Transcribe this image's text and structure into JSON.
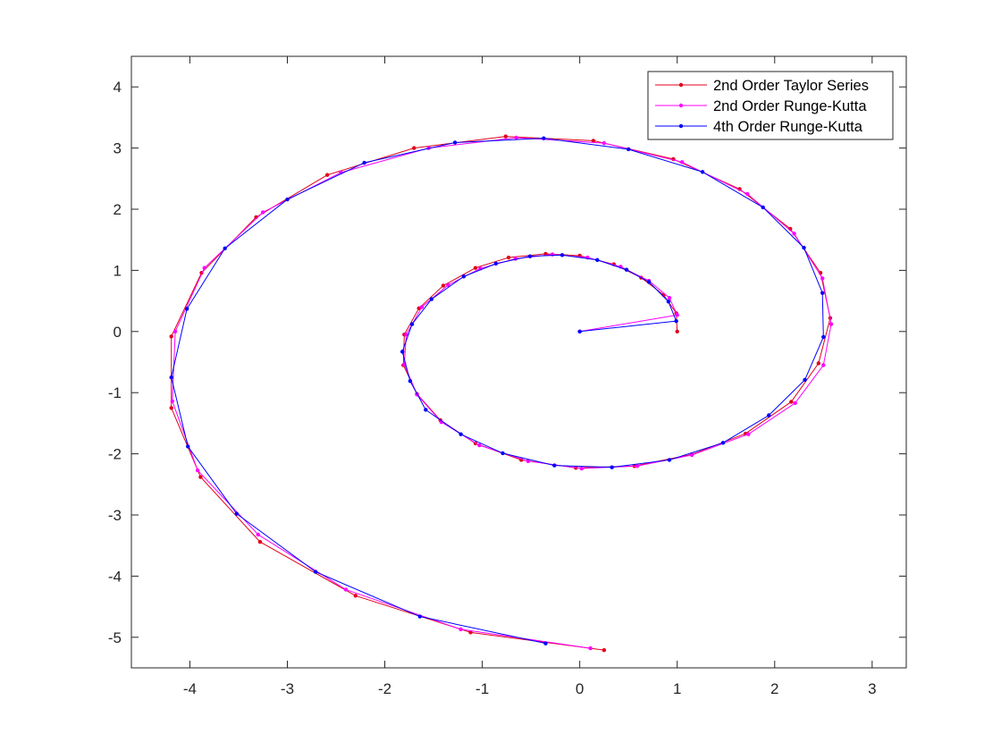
{
  "chart_data": {
    "type": "line",
    "title": "",
    "xlabel": "",
    "ylabel": "",
    "xlim": [
      -4.6,
      3.35
    ],
    "ylim": [
      -5.5,
      4.5
    ],
    "x_ticks": [
      -4,
      -3,
      -2,
      -1,
      0,
      1,
      2,
      3
    ],
    "y_ticks": [
      4,
      3,
      2,
      1,
      0,
      -1,
      -2,
      -3,
      -4,
      -5
    ],
    "x_tick_labels": [
      "-4",
      "-3",
      "-2",
      "-1",
      "0",
      "1",
      "2",
      "3"
    ],
    "y_tick_labels": [
      "4",
      "3",
      "2",
      "1",
      "0",
      "-1",
      "-2",
      "-3",
      "-4",
      "-5"
    ],
    "grid": false,
    "box": true,
    "legend_position": "top-right",
    "legend_entries": [
      "2nd Order Taylor Series",
      "2nd Order Runge-Kutta",
      "4th Order Runge-Kutta"
    ],
    "series": [
      {
        "name": "2nd Order Taylor Series",
        "color": "#e0001b",
        "marker": "dot",
        "points": [
          [
            1.0,
            0.0
          ],
          [
            0.99,
            0.3
          ],
          [
            0.86,
            0.6
          ],
          [
            0.63,
            0.88
          ],
          [
            0.35,
            1.1
          ],
          [
            0.0,
            1.24
          ],
          [
            -0.35,
            1.27
          ],
          [
            -0.73,
            1.21
          ],
          [
            -1.07,
            1.04
          ],
          [
            -1.4,
            0.75
          ],
          [
            -1.65,
            0.38
          ],
          [
            -1.8,
            -0.05
          ],
          [
            -1.81,
            -0.55
          ],
          [
            -1.67,
            -1.02
          ],
          [
            -1.43,
            -1.45
          ],
          [
            -1.07,
            -1.83
          ],
          [
            -0.6,
            -2.1
          ],
          [
            -0.04,
            -2.23
          ],
          [
            0.56,
            -2.2
          ],
          [
            1.15,
            -2.01
          ],
          [
            1.7,
            -1.67
          ],
          [
            2.17,
            -1.15
          ],
          [
            2.45,
            -0.52
          ],
          [
            2.57,
            0.22
          ],
          [
            2.47,
            0.96
          ],
          [
            2.16,
            1.68
          ],
          [
            1.64,
            2.33
          ],
          [
            0.96,
            2.82
          ],
          [
            0.14,
            3.12
          ],
          [
            -0.76,
            3.19
          ],
          [
            -1.7,
            3.0
          ],
          [
            -2.59,
            2.56
          ],
          [
            -3.32,
            1.87
          ],
          [
            -3.88,
            0.96
          ],
          [
            -4.19,
            -0.08
          ],
          [
            -4.19,
            -1.25
          ],
          [
            -3.89,
            -2.38
          ],
          [
            -3.28,
            -3.44
          ],
          [
            -2.3,
            -4.32
          ],
          [
            -1.12,
            -4.92
          ],
          [
            0.25,
            -5.21
          ]
        ]
      },
      {
        "name": "2nd Order Runge-Kutta",
        "color": "#ff00ff",
        "marker": "dot",
        "points": [
          [
            0.0,
            0.0
          ],
          [
            1.0,
            0.27
          ],
          [
            0.92,
            0.55
          ],
          [
            0.71,
            0.83
          ],
          [
            0.42,
            1.06
          ],
          [
            0.08,
            1.21
          ],
          [
            -0.28,
            1.26
          ],
          [
            -0.66,
            1.19
          ],
          [
            -1.02,
            1.03
          ],
          [
            -1.35,
            0.76
          ],
          [
            -1.62,
            0.4
          ],
          [
            -1.78,
            -0.05
          ],
          [
            -1.8,
            -0.54
          ],
          [
            -1.67,
            -1.03
          ],
          [
            -1.42,
            -1.48
          ],
          [
            -1.03,
            -1.86
          ],
          [
            -0.53,
            -2.12
          ],
          [
            0.02,
            -2.24
          ],
          [
            0.59,
            -2.2
          ],
          [
            1.15,
            -2.02
          ],
          [
            1.73,
            -1.68
          ],
          [
            2.21,
            -1.17
          ],
          [
            2.5,
            -0.55
          ],
          [
            2.58,
            0.12
          ],
          [
            2.49,
            0.87
          ],
          [
            2.2,
            1.6
          ],
          [
            1.72,
            2.25
          ],
          [
            1.05,
            2.77
          ],
          [
            0.25,
            3.08
          ],
          [
            -0.65,
            3.17
          ],
          [
            -1.55,
            3.0
          ],
          [
            -2.45,
            2.6
          ],
          [
            -3.25,
            1.95
          ],
          [
            -3.85,
            1.04
          ],
          [
            -4.15,
            0.0
          ],
          [
            -4.18,
            -1.14
          ],
          [
            -3.92,
            -2.27
          ],
          [
            -3.3,
            -3.32
          ],
          [
            -2.4,
            -4.22
          ],
          [
            -1.22,
            -4.87
          ],
          [
            0.11,
            -5.18
          ]
        ]
      },
      {
        "name": "4th Order Runge-Kutta",
        "color": "#0000ff",
        "marker": "dot",
        "points": [
          [
            0.0,
            0.0
          ],
          [
            0.99,
            0.17
          ],
          [
            0.91,
            0.49
          ],
          [
            0.71,
            0.81
          ],
          [
            0.48,
            1.01
          ],
          [
            0.18,
            1.17
          ],
          [
            -0.18,
            1.25
          ],
          [
            -0.51,
            1.23
          ],
          [
            -0.86,
            1.11
          ],
          [
            -1.19,
            0.9
          ],
          [
            -1.52,
            0.53
          ],
          [
            -1.72,
            0.12
          ],
          [
            -1.82,
            -0.33
          ],
          [
            -1.74,
            -0.81
          ],
          [
            -1.58,
            -1.28
          ],
          [
            -1.22,
            -1.68
          ],
          [
            -0.79,
            -1.99
          ],
          [
            -0.26,
            -2.19
          ],
          [
            0.33,
            -2.22
          ],
          [
            0.92,
            -2.1
          ],
          [
            1.47,
            -1.82
          ],
          [
            1.94,
            -1.37
          ],
          [
            2.31,
            -0.79
          ],
          [
            2.5,
            -0.09
          ],
          [
            2.49,
            0.63
          ],
          [
            2.3,
            1.37
          ],
          [
            1.88,
            2.03
          ],
          [
            1.26,
            2.61
          ],
          [
            0.5,
            2.98
          ],
          [
            -0.37,
            3.16
          ],
          [
            -1.28,
            3.09
          ],
          [
            -2.21,
            2.76
          ],
          [
            -3.0,
            2.16
          ],
          [
            -3.64,
            1.36
          ],
          [
            -4.03,
            0.37
          ],
          [
            -4.19,
            -0.75
          ],
          [
            -4.02,
            -1.88
          ],
          [
            -3.52,
            -2.98
          ],
          [
            -2.71,
            -3.93
          ],
          [
            -1.64,
            -4.66
          ],
          [
            -0.35,
            -5.1
          ]
        ]
      }
    ]
  }
}
